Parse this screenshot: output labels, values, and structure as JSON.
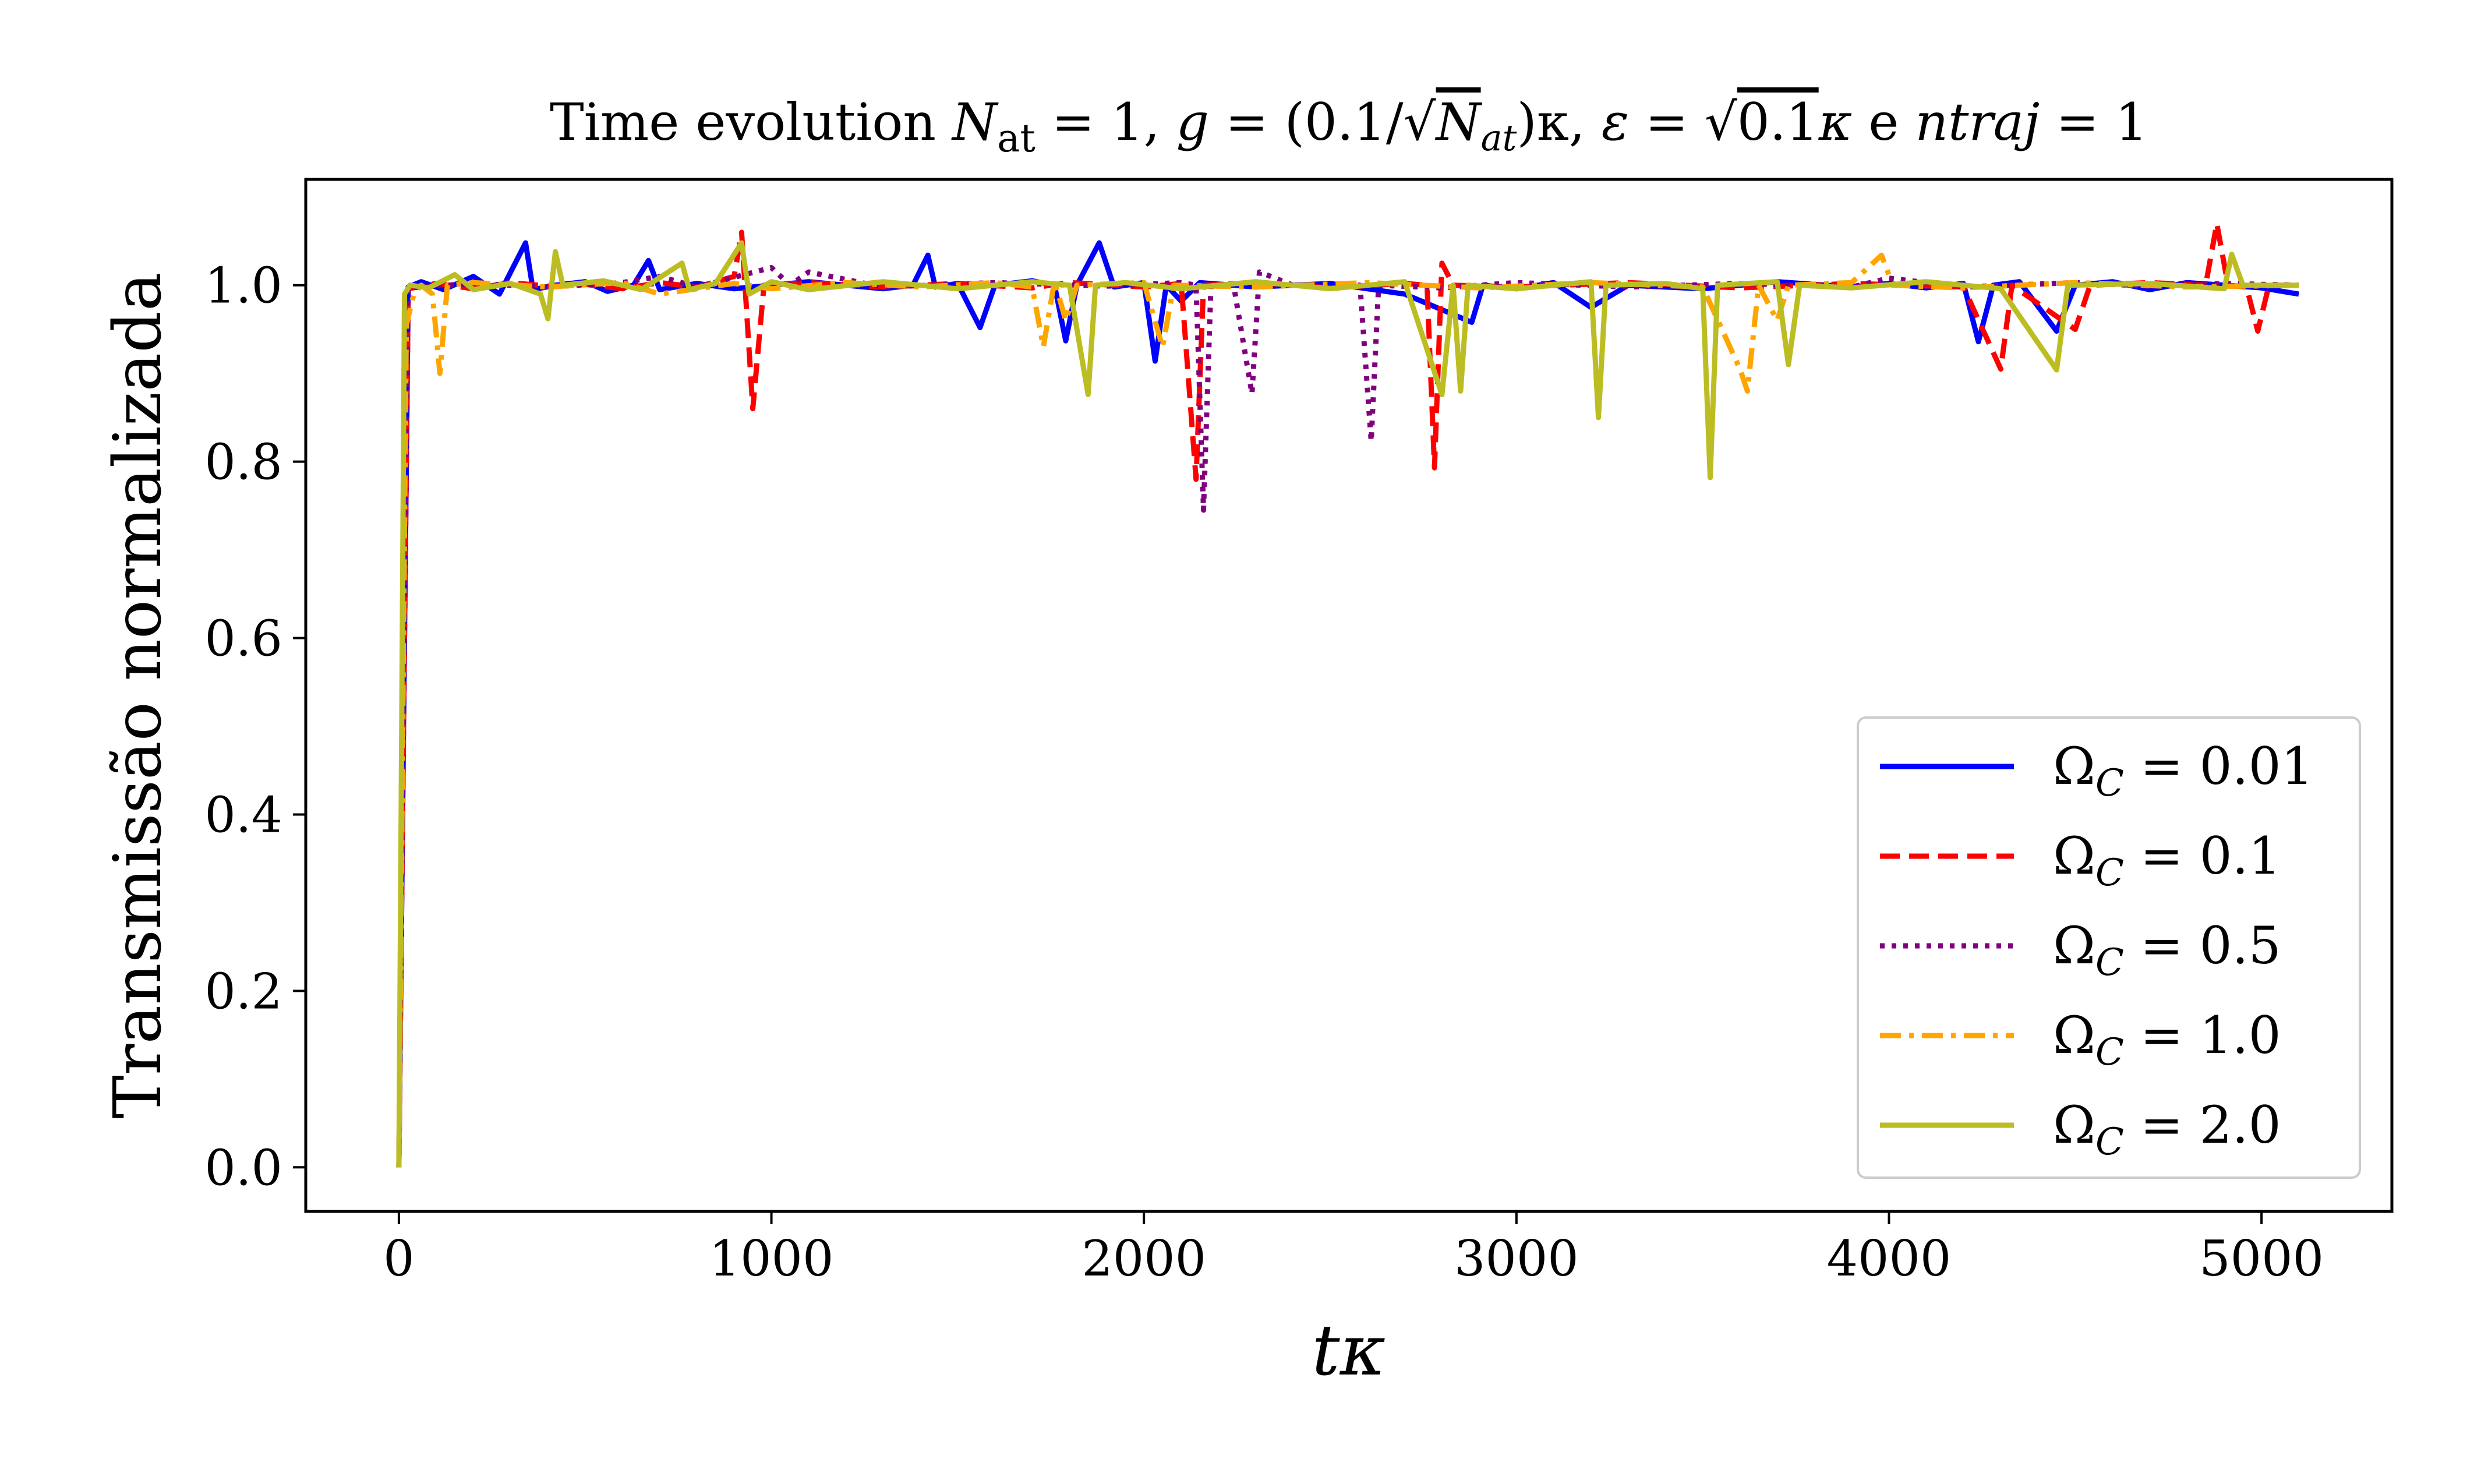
{
  "chart_data": {
    "type": "line",
    "title": "Time evolution N_at = 1, g = (0.1/√N_at)κ, ε = √0.1κ e ntraj = 1",
    "title_parts": {
      "prefix": "Time evolution ",
      "n": "N",
      "n_sub": "at",
      "eq1": " = 1, ",
      "g": "g",
      "eq2": " = (0.1/",
      "sqrt_n": "N",
      "sqrt_n_sub": "at",
      "eq3": ")κ, ",
      "eps": "ε",
      "eq4": " = ",
      "sqrt_val": "0.1",
      "kappa": "κ",
      "mid": " e ",
      "ntraj": "ntraj",
      "eq5": " = 1"
    },
    "xlabel": "tκ",
    "ylabel": "Transmissão normalizada",
    "xlim": [
      -250,
      5350
    ],
    "ylim": [
      -0.05,
      1.12
    ],
    "xticks": [
      0,
      1000,
      2000,
      3000,
      4000,
      5000
    ],
    "xtick_labels": [
      "0",
      "1000",
      "2000",
      "3000",
      "4000",
      "5000"
    ],
    "yticks": [
      0.0,
      0.2,
      0.4,
      0.6,
      0.8,
      1.0
    ],
    "ytick_labels": [
      "0.0",
      "0.2",
      "0.4",
      "0.6",
      "0.8",
      "1.0"
    ],
    "grid": false,
    "legend_position": "lower-right",
    "series": [
      {
        "name": "Ω_C = 0.01",
        "label_value": "0.01",
        "color": "#0000ff",
        "dash": "solid",
        "points": [
          [
            0,
            0.0
          ],
          [
            25,
            0.998
          ],
          [
            60,
            1.004
          ],
          [
            120,
            0.995
          ],
          [
            200,
            1.01
          ],
          [
            270,
            0.99
          ],
          [
            340,
            1.048
          ],
          [
            360,
            0.995
          ],
          [
            420,
            1.0
          ],
          [
            500,
            1.004
          ],
          [
            560,
            0.993
          ],
          [
            630,
            1.0
          ],
          [
            670,
            1.028
          ],
          [
            700,
            0.995
          ],
          [
            800,
            1.002
          ],
          [
            900,
            0.996
          ],
          [
            1000,
            1.0
          ],
          [
            1100,
            1.004
          ],
          [
            1200,
            1.0
          ],
          [
            1300,
            0.996
          ],
          [
            1380,
            1.0
          ],
          [
            1420,
            1.034
          ],
          [
            1440,
            0.998
          ],
          [
            1500,
            1.002
          ],
          [
            1560,
            0.952
          ],
          [
            1600,
            1.0
          ],
          [
            1700,
            1.005
          ],
          [
            1760,
            1.0
          ],
          [
            1790,
            0.937
          ],
          [
            1820,
            1.0
          ],
          [
            1880,
            1.048
          ],
          [
            1920,
            0.998
          ],
          [
            2000,
            1.003
          ],
          [
            2030,
            0.914
          ],
          [
            2060,
            1.0
          ],
          [
            2100,
            0.982
          ],
          [
            2150,
            1.003
          ],
          [
            2300,
            0.998
          ],
          [
            2500,
            1.002
          ],
          [
            2700,
            0.99
          ],
          [
            2880,
            0.958
          ],
          [
            2910,
            1.0
          ],
          [
            3000,
            0.996
          ],
          [
            3100,
            1.003
          ],
          [
            3200,
            0.975
          ],
          [
            3300,
            1.0
          ],
          [
            3500,
            0.996
          ],
          [
            3700,
            1.004
          ],
          [
            3900,
            0.998
          ],
          [
            4000,
            1.002
          ],
          [
            4100,
            0.997
          ],
          [
            4200,
            1.002
          ],
          [
            4240,
            0.936
          ],
          [
            4280,
            1.0
          ],
          [
            4350,
            1.004
          ],
          [
            4450,
            0.948
          ],
          [
            4500,
            1.0
          ],
          [
            4600,
            1.004
          ],
          [
            4700,
            0.995
          ],
          [
            4800,
            1.003
          ],
          [
            4900,
            1.0
          ],
          [
            5000,
            0.997
          ],
          [
            5100,
            0.99
          ]
        ]
      },
      {
        "name": "Ω_C = 0.1",
        "label_value": "0.1",
        "color": "#ff0000",
        "dash": "dashed",
        "points": [
          [
            0,
            0.0
          ],
          [
            25,
            0.996
          ],
          [
            100,
            1.002
          ],
          [
            200,
            0.996
          ],
          [
            300,
            1.003
          ],
          [
            400,
            0.999
          ],
          [
            500,
            1.001
          ],
          [
            600,
            0.996
          ],
          [
            700,
            1.003
          ],
          [
            800,
            0.998
          ],
          [
            900,
            1.01
          ],
          [
            920,
            1.06
          ],
          [
            950,
            0.86
          ],
          [
            980,
            1.0
          ],
          [
            1100,
            1.003
          ],
          [
            1300,
            0.998
          ],
          [
            1500,
            1.002
          ],
          [
            1700,
            0.997
          ],
          [
            1800,
            1.003
          ],
          [
            2000,
            0.998
          ],
          [
            2100,
            1.002
          ],
          [
            2140,
            0.78
          ],
          [
            2160,
            1.0
          ],
          [
            2300,
            1.003
          ],
          [
            2500,
            0.997
          ],
          [
            2700,
            1.002
          ],
          [
            2760,
            1.0
          ],
          [
            2780,
            0.793
          ],
          [
            2800,
            1.025
          ],
          [
            2830,
            1.0
          ],
          [
            3000,
            0.998
          ],
          [
            3300,
            1.003
          ],
          [
            3600,
            0.997
          ],
          [
            3900,
            1.002
          ],
          [
            4200,
            0.998
          ],
          [
            4300,
            0.905
          ],
          [
            4330,
            1.0
          ],
          [
            4500,
            0.95
          ],
          [
            4540,
            1.0
          ],
          [
            4700,
            1.003
          ],
          [
            4850,
            1.0
          ],
          [
            4880,
            1.07
          ],
          [
            4910,
            1.0
          ],
          [
            4960,
            0.998
          ],
          [
            4990,
            0.948
          ],
          [
            5020,
            1.0
          ],
          [
            5100,
            1.0
          ]
        ]
      },
      {
        "name": "Ω_C = 0.5",
        "label_value": "0.5",
        "color": "#800080",
        "dash": "dotted",
        "points": [
          [
            0,
            0.0
          ],
          [
            25,
            0.997
          ],
          [
            200,
            1.002
          ],
          [
            400,
            0.998
          ],
          [
            600,
            1.003
          ],
          [
            700,
            1.01
          ],
          [
            800,
            0.998
          ],
          [
            1000,
            1.02
          ],
          [
            1050,
            1.0
          ],
          [
            1100,
            1.015
          ],
          [
            1300,
            0.998
          ],
          [
            1600,
            1.003
          ],
          [
            1900,
            0.999
          ],
          [
            2100,
            1.003
          ],
          [
            2140,
            1.0
          ],
          [
            2160,
            0.745
          ],
          [
            2180,
            1.0
          ],
          [
            2240,
            1.002
          ],
          [
            2290,
            0.877
          ],
          [
            2310,
            1.015
          ],
          [
            2400,
            1.0
          ],
          [
            2580,
            1.0
          ],
          [
            2610,
            0.823
          ],
          [
            2630,
            1.0
          ],
          [
            2800,
            0.997
          ],
          [
            3000,
            1.003
          ],
          [
            3300,
            0.998
          ],
          [
            3600,
            1.002
          ],
          [
            3900,
            0.998
          ],
          [
            4000,
            1.008
          ],
          [
            4200,
            0.998
          ],
          [
            4500,
            1.003
          ],
          [
            4700,
            0.999
          ],
          [
            4900,
            1.002
          ],
          [
            5100,
            1.0
          ]
        ]
      },
      {
        "name": "Ω_C = 1.0",
        "label_value": "1.0",
        "color": "#ffa500",
        "dash": "dashdot",
        "points": [
          [
            0,
            0.0
          ],
          [
            20,
            0.955
          ],
          [
            40,
            0.99
          ],
          [
            60,
            1.0
          ],
          [
            90,
            0.99
          ],
          [
            110,
            0.9
          ],
          [
            130,
            1.0
          ],
          [
            200,
            1.003
          ],
          [
            400,
            0.998
          ],
          [
            600,
            1.003
          ],
          [
            700,
            0.99
          ],
          [
            900,
            1.002
          ],
          [
            1000,
            0.996
          ],
          [
            1200,
            1.003
          ],
          [
            1400,
            0.998
          ],
          [
            1600,
            1.003
          ],
          [
            1700,
            0.998
          ],
          [
            1730,
            0.93
          ],
          [
            1760,
            1.005
          ],
          [
            1790,
            0.96
          ],
          [
            1820,
            1.0
          ],
          [
            2000,
            1.003
          ],
          [
            2050,
            0.93
          ],
          [
            2080,
            1.0
          ],
          [
            2300,
            0.998
          ],
          [
            2600,
            1.003
          ],
          [
            2900,
            0.997
          ],
          [
            3200,
            1.003
          ],
          [
            3500,
            0.998
          ],
          [
            3600,
            0.905
          ],
          [
            3620,
            0.88
          ],
          [
            3650,
            1.0
          ],
          [
            3700,
            0.96
          ],
          [
            3730,
            1.0
          ],
          [
            3900,
            1.003
          ],
          [
            3980,
            1.034
          ],
          [
            4010,
            1.0
          ],
          [
            4200,
            0.997
          ],
          [
            4500,
            1.003
          ],
          [
            4800,
            0.998
          ],
          [
            5100,
            1.0
          ]
        ]
      },
      {
        "name": "Ω_C = 2.0",
        "label_value": "2.0",
        "color": "#bcbd22",
        "dash": "solid",
        "points": [
          [
            0,
            0.0
          ],
          [
            15,
            0.99
          ],
          [
            30,
            1.0
          ],
          [
            80,
            0.997
          ],
          [
            150,
            1.012
          ],
          [
            200,
            0.995
          ],
          [
            300,
            1.002
          ],
          [
            380,
            0.99
          ],
          [
            400,
            0.962
          ],
          [
            420,
            1.038
          ],
          [
            440,
            1.0
          ],
          [
            550,
            1.005
          ],
          [
            650,
            0.995
          ],
          [
            760,
            1.025
          ],
          [
            780,
            0.995
          ],
          [
            850,
            1.002
          ],
          [
            920,
            1.048
          ],
          [
            940,
            0.99
          ],
          [
            1000,
            1.004
          ],
          [
            1100,
            0.995
          ],
          [
            1300,
            1.004
          ],
          [
            1500,
            0.996
          ],
          [
            1700,
            1.004
          ],
          [
            1800,
            1.0
          ],
          [
            1850,
            0.876
          ],
          [
            1870,
            1.0
          ],
          [
            1950,
            1.003
          ],
          [
            2100,
            0.996
          ],
          [
            2300,
            1.004
          ],
          [
            2500,
            0.996
          ],
          [
            2700,
            1.004
          ],
          [
            2800,
            0.876
          ],
          [
            2830,
            1.0
          ],
          [
            2850,
            0.88
          ],
          [
            2870,
            1.0
          ],
          [
            3000,
            0.996
          ],
          [
            3200,
            1.004
          ],
          [
            3220,
            0.85
          ],
          [
            3240,
            1.0
          ],
          [
            3400,
            1.002
          ],
          [
            3500,
            0.996
          ],
          [
            3520,
            0.782
          ],
          [
            3540,
            1.0
          ],
          [
            3700,
            1.004
          ],
          [
            3730,
            0.91
          ],
          [
            3760,
            1.0
          ],
          [
            3900,
            0.997
          ],
          [
            4100,
            1.004
          ],
          [
            4300,
            0.996
          ],
          [
            4450,
            0.904
          ],
          [
            4480,
            1.0
          ],
          [
            4700,
            1.002
          ],
          [
            4900,
            0.996
          ],
          [
            4920,
            1.035
          ],
          [
            4950,
            1.0
          ],
          [
            5100,
            1.0
          ]
        ]
      }
    ]
  }
}
